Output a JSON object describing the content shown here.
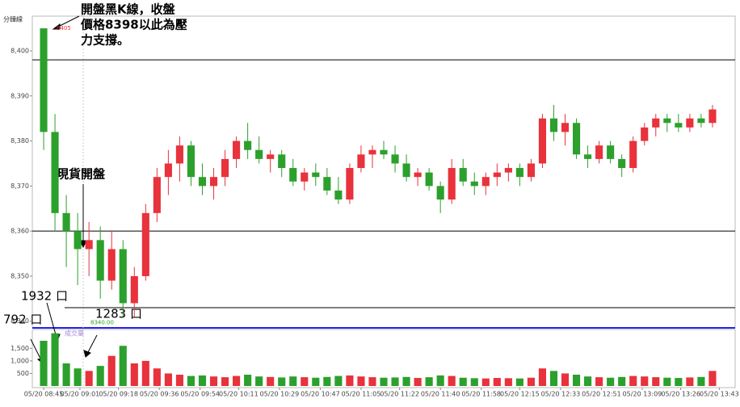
{
  "chart_data": {
    "type": "candlestick",
    "title": "分鐘線",
    "volume_label": "成交量",
    "xlim": [
      520,
      830
    ],
    "xticks": [
      {
        "value": 525,
        "label": "05/20 08:45"
      },
      {
        "value": 541,
        "label": "05/20 09:01"
      },
      {
        "value": 558,
        "label": "05/20 09:18"
      },
      {
        "value": 576,
        "label": "05/20 09:36"
      },
      {
        "value": 594,
        "label": "05/20 09:54"
      },
      {
        "value": 611,
        "label": "05/20 10:11"
      },
      {
        "value": 629,
        "label": "05/20 10:29"
      },
      {
        "value": 647,
        "label": "05/20 10:47"
      },
      {
        "value": 665,
        "label": "05/20 11:05"
      },
      {
        "value": 682,
        "label": "05/20 11:22"
      },
      {
        "value": 700,
        "label": "05/20 11:40"
      },
      {
        "value": 718,
        "label": "05/20 11:58"
      },
      {
        "value": 735,
        "label": "05/20 12:15"
      },
      {
        "value": 753,
        "label": "05/20 12:33"
      },
      {
        "value": 771,
        "label": "05/20 12:51"
      },
      {
        "value": 789,
        "label": "05/20 13:09"
      },
      {
        "value": 806,
        "label": "05/20 13:26"
      },
      {
        "value": 823,
        "label": "05/20 13:43"
      }
    ],
    "ylim": [
      8338.7,
      8407.7
    ],
    "yticks": [
      {
        "value": 8340,
        "label": "8,340"
      },
      {
        "value": 8350,
        "label": "8,350"
      },
      {
        "value": 8360,
        "label": "8,360"
      },
      {
        "value": 8370,
        "label": "8,370"
      },
      {
        "value": 8380,
        "label": "8,380"
      },
      {
        "value": 8390,
        "label": "8,390"
      },
      {
        "value": 8400,
        "label": "8,400"
      }
    ],
    "y2lim": [
      0,
      2250
    ],
    "y2ticks": [
      {
        "value": 500,
        "label": "500"
      },
      {
        "value": 1000,
        "label": "1,000"
      },
      {
        "value": 1500,
        "label": "1,500"
      }
    ],
    "up_color": "#e8323c",
    "down_color": "#2ca02c",
    "x": [
      525,
      530,
      535,
      540,
      545,
      550,
      555,
      560,
      565,
      570,
      575,
      580,
      585,
      590,
      595,
      600,
      605,
      610,
      615,
      620,
      625,
      630,
      635,
      640,
      645,
      650,
      655,
      660,
      665,
      670,
      675,
      680,
      685,
      690,
      695,
      700,
      705,
      710,
      715,
      720,
      725,
      730,
      735,
      740,
      745,
      750,
      755,
      760,
      765,
      770,
      775,
      780,
      785,
      790,
      795,
      800,
      805,
      810,
      815,
      820
    ],
    "open": [
      8405,
      8382,
      8364,
      8360,
      8356,
      8358,
      8349,
      8356,
      8344,
      8350,
      8364,
      8372,
      8375,
      8379,
      8372,
      8370,
      8372,
      8376,
      8380,
      8378,
      8376,
      8377,
      8374,
      8371,
      8373,
      8372,
      8369,
      8367,
      8374,
      8377,
      8378,
      8377,
      8375,
      8372,
      8373,
      8370,
      8367,
      8374,
      8371,
      8370,
      8372,
      8373,
      8374,
      8372,
      8375,
      8385,
      8382,
      8384,
      8377,
      8376,
      8379,
      8376,
      8374,
      8380,
      8383,
      8385,
      8384,
      8383,
      8385,
      8384
    ],
    "high": [
      8405,
      8386,
      8368,
      8364,
      8362,
      8361,
      8360,
      8358,
      8352,
      8366,
      8374,
      8378,
      8381,
      8380,
      8375,
      8374,
      8378,
      8381,
      8384,
      8381,
      8378,
      8378,
      8376,
      8374,
      8375,
      8374,
      8372,
      8375,
      8379,
      8379,
      8380,
      8379,
      8377,
      8374,
      8374,
      8371,
      8376,
      8376,
      8373,
      8373,
      8375,
      8375,
      8375,
      8376,
      8386,
      8388,
      8386,
      8385,
      8379,
      8380,
      8380,
      8377,
      8381,
      8384,
      8386,
      8386,
      8386,
      8386,
      8386,
      8388
    ],
    "low": [
      8378,
      8360,
      8352,
      8348,
      8350,
      8345,
      8347,
      8341,
      8341,
      8349,
      8362,
      8368,
      8371,
      8370,
      8368,
      8367,
      8370,
      8374,
      8376,
      8375,
      8373,
      8372,
      8370,
      8369,
      8370,
      8368,
      8366,
      8366,
      8373,
      8374,
      8376,
      8373,
      8371,
      8370,
      8369,
      8364,
      8366,
      8370,
      8368,
      8368,
      8370,
      8371,
      8370,
      8371,
      8374,
      8380,
      8379,
      8376,
      8374,
      8375,
      8375,
      8372,
      8373,
      8379,
      8381,
      8382,
      8382,
      8382,
      8383,
      8383
    ],
    "close": [
      8382,
      8364,
      8360,
      8356,
      8358,
      8349,
      8356,
      8344,
      8350,
      8364,
      8372,
      8375,
      8379,
      8372,
      8370,
      8372,
      8376,
      8380,
      8378,
      8376,
      8377,
      8374,
      8371,
      8373,
      8372,
      8369,
      8367,
      8374,
      8377,
      8378,
      8377,
      8375,
      8372,
      8373,
      8370,
      8367,
      8374,
      8371,
      8370,
      8372,
      8373,
      8374,
      8372,
      8375,
      8385,
      8382,
      8384,
      8377,
      8376,
      8379,
      8376,
      8374,
      8380,
      8383,
      8385,
      8384,
      8383,
      8385,
      8384,
      8387
    ],
    "volume": [
      1800,
      2100,
      900,
      700,
      600,
      800,
      1200,
      1600,
      900,
      1000,
      700,
      500,
      450,
      400,
      420,
      380,
      350,
      400,
      450,
      380,
      360,
      340,
      380,
      350,
      330,
      360,
      400,
      420,
      380,
      350,
      330,
      340,
      360,
      320,
      350,
      420,
      400,
      330,
      310,
      300,
      320,
      310,
      300,
      330,
      700,
      600,
      500,
      450,
      380,
      350,
      330,
      360,
      400,
      380,
      350,
      330,
      320,
      340,
      360,
      600
    ],
    "reference_lines": [
      8398,
      8360,
      8343
    ],
    "price_labels": [
      {
        "value": 8405,
        "label": "8405"
      },
      {
        "value": 8340,
        "label": "8340.00"
      }
    ],
    "annotations": [
      "開盤黑K線，收盤",
      "價格8398以此為壓",
      "力支撐。",
      "現貨開盤",
      "1932 口",
      "792 口",
      "1283 口"
    ]
  }
}
